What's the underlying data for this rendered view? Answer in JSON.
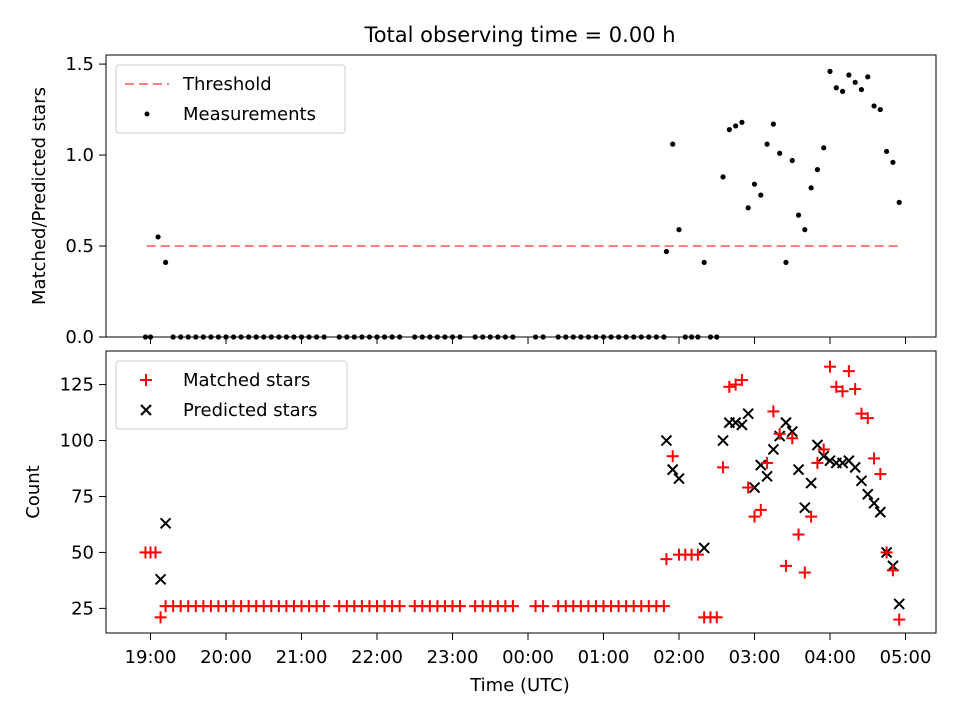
{
  "title": "Total observing time = 0.00 h",
  "colors": {
    "threshold": "#ff7f7f",
    "measurements": "#000000",
    "matched": "#ff0000",
    "predicted": "#000000"
  },
  "chart_data": [
    {
      "type": "scatter",
      "panel": "top",
      "ylabel": "Matched/Predicted stars",
      "xlabel": "",
      "ylim": [
        0,
        1.55
      ],
      "yticks": [
        0.0,
        0.5,
        1.0,
        1.5
      ],
      "ytick_labels": [
        "0.0",
        "0.5",
        "1.0",
        "1.5"
      ],
      "legend_position": "top-left",
      "threshold": {
        "name": "Threshold",
        "value": 0.5,
        "x_start": "18:57",
        "x_end": "04:57"
      },
      "series": [
        {
          "name": "Measurements",
          "points": [
            [
              "18:56",
              0
            ],
            [
              "19:00",
              0
            ],
            [
              "19:06",
              0.55
            ],
            [
              "19:12",
              0.41
            ],
            [
              "19:18",
              0
            ],
            [
              "19:24",
              0
            ],
            [
              "19:30",
              0
            ],
            [
              "19:36",
              0
            ],
            [
              "19:42",
              0
            ],
            [
              "19:48",
              0
            ],
            [
              "19:54",
              0
            ],
            [
              "20:00",
              0
            ],
            [
              "20:06",
              0
            ],
            [
              "20:12",
              0
            ],
            [
              "20:18",
              0
            ],
            [
              "20:24",
              0
            ],
            [
              "20:30",
              0
            ],
            [
              "20:36",
              0
            ],
            [
              "20:42",
              0
            ],
            [
              "20:48",
              0
            ],
            [
              "20:54",
              0
            ],
            [
              "21:00",
              0
            ],
            [
              "21:06",
              0
            ],
            [
              "21:12",
              0
            ],
            [
              "21:18",
              0
            ],
            [
              "21:30",
              0
            ],
            [
              "21:36",
              0
            ],
            [
              "21:42",
              0
            ],
            [
              "21:48",
              0
            ],
            [
              "21:54",
              0
            ],
            [
              "22:00",
              0
            ],
            [
              "22:06",
              0
            ],
            [
              "22:12",
              0
            ],
            [
              "22:18",
              0
            ],
            [
              "22:30",
              0
            ],
            [
              "22:36",
              0
            ],
            [
              "22:42",
              0
            ],
            [
              "22:48",
              0
            ],
            [
              "22:54",
              0
            ],
            [
              "23:00",
              0
            ],
            [
              "23:06",
              0
            ],
            [
              "23:18",
              0
            ],
            [
              "23:24",
              0
            ],
            [
              "23:30",
              0
            ],
            [
              "23:36",
              0
            ],
            [
              "23:42",
              0
            ],
            [
              "23:48",
              0
            ],
            [
              "00:06",
              0
            ],
            [
              "00:12",
              0
            ],
            [
              "00:24",
              0
            ],
            [
              "00:30",
              0
            ],
            [
              "00:36",
              0
            ],
            [
              "00:42",
              0
            ],
            [
              "00:48",
              0
            ],
            [
              "00:54",
              0
            ],
            [
              "01:00",
              0
            ],
            [
              "01:06",
              0
            ],
            [
              "01:12",
              0
            ],
            [
              "01:18",
              0
            ],
            [
              "01:24",
              0
            ],
            [
              "01:30",
              0
            ],
            [
              "01:36",
              0
            ],
            [
              "01:42",
              0
            ],
            [
              "01:48",
              0
            ],
            [
              "01:50",
              0.47
            ],
            [
              "01:55",
              1.06
            ],
            [
              "02:00",
              0.59
            ],
            [
              "02:05",
              0
            ],
            [
              "02:10",
              0
            ],
            [
              "02:15",
              0
            ],
            [
              "02:20",
              0.41
            ],
            [
              "02:25",
              0
            ],
            [
              "02:30",
              0
            ],
            [
              "02:35",
              0.88
            ],
            [
              "02:40",
              1.14
            ],
            [
              "02:45",
              1.16
            ],
            [
              "02:50",
              1.18
            ],
            [
              "02:55",
              0.71
            ],
            [
              "03:00",
              0.84
            ],
            [
              "03:05",
              0.78
            ],
            [
              "03:10",
              1.06
            ],
            [
              "03:15",
              1.17
            ],
            [
              "03:20",
              1.01
            ],
            [
              "03:25",
              0.41
            ],
            [
              "03:30",
              0.97
            ],
            [
              "03:35",
              0.67
            ],
            [
              "03:40",
              0.59
            ],
            [
              "03:45",
              0.82
            ],
            [
              "03:50",
              0.92
            ],
            [
              "03:55",
              1.04
            ],
            [
              "04:00",
              1.46
            ],
            [
              "04:05",
              1.37
            ],
            [
              "04:10",
              1.35
            ],
            [
              "04:15",
              1.44
            ],
            [
              "04:20",
              1.4
            ],
            [
              "04:25",
              1.36
            ],
            [
              "04:30",
              1.43
            ],
            [
              "04:35",
              1.27
            ],
            [
              "04:40",
              1.25
            ],
            [
              "04:45",
              1.02
            ],
            [
              "04:50",
              0.96
            ],
            [
              "04:55",
              0.74
            ]
          ]
        }
      ]
    },
    {
      "type": "scatter",
      "panel": "bottom",
      "xlabel": "Time (UTC)",
      "ylabel": "Count",
      "ylim": [
        14,
        140
      ],
      "yticks": [
        25,
        50,
        75,
        100,
        125
      ],
      "ytick_labels": [
        "25",
        "50",
        "75",
        "100",
        "125"
      ],
      "xticks": [
        "19:00",
        "20:00",
        "21:00",
        "22:00",
        "23:00",
        "00:00",
        "01:00",
        "02:00",
        "03:00",
        "04:00",
        "05:00"
      ],
      "xtick_labels": [
        "19:00",
        "20:00",
        "21:00",
        "22:00",
        "23:00",
        "00:00",
        "01:00",
        "02:00",
        "03:00",
        "04:00",
        "05:00"
      ],
      "legend_position": "top-left",
      "series": [
        {
          "name": "Matched stars",
          "points": [
            [
              "18:56",
              50
            ],
            [
              "19:00",
              50
            ],
            [
              "19:04",
              50
            ],
            [
              "19:08",
              21
            ],
            [
              "19:12",
              26
            ],
            [
              "19:18",
              26
            ],
            [
              "19:24",
              26
            ],
            [
              "19:30",
              26
            ],
            [
              "19:36",
              26
            ],
            [
              "19:42",
              26
            ],
            [
              "19:48",
              26
            ],
            [
              "19:54",
              26
            ],
            [
              "20:00",
              26
            ],
            [
              "20:06",
              26
            ],
            [
              "20:12",
              26
            ],
            [
              "20:18",
              26
            ],
            [
              "20:24",
              26
            ],
            [
              "20:30",
              26
            ],
            [
              "20:36",
              26
            ],
            [
              "20:42",
              26
            ],
            [
              "20:48",
              26
            ],
            [
              "20:54",
              26
            ],
            [
              "21:00",
              26
            ],
            [
              "21:06",
              26
            ],
            [
              "21:12",
              26
            ],
            [
              "21:18",
              26
            ],
            [
              "21:30",
              26
            ],
            [
              "21:36",
              26
            ],
            [
              "21:42",
              26
            ],
            [
              "21:48",
              26
            ],
            [
              "21:54",
              26
            ],
            [
              "22:00",
              26
            ],
            [
              "22:06",
              26
            ],
            [
              "22:12",
              26
            ],
            [
              "22:18",
              26
            ],
            [
              "22:30",
              26
            ],
            [
              "22:36",
              26
            ],
            [
              "22:42",
              26
            ],
            [
              "22:48",
              26
            ],
            [
              "22:54",
              26
            ],
            [
              "23:00",
              26
            ],
            [
              "23:06",
              26
            ],
            [
              "23:18",
              26
            ],
            [
              "23:24",
              26
            ],
            [
              "23:30",
              26
            ],
            [
              "23:36",
              26
            ],
            [
              "23:42",
              26
            ],
            [
              "23:48",
              26
            ],
            [
              "00:06",
              26
            ],
            [
              "00:12",
              26
            ],
            [
              "00:24",
              26
            ],
            [
              "00:30",
              26
            ],
            [
              "00:36",
              26
            ],
            [
              "00:42",
              26
            ],
            [
              "00:48",
              26
            ],
            [
              "00:54",
              26
            ],
            [
              "01:00",
              26
            ],
            [
              "01:06",
              26
            ],
            [
              "01:12",
              26
            ],
            [
              "01:18",
              26
            ],
            [
              "01:24",
              26
            ],
            [
              "01:30",
              26
            ],
            [
              "01:36",
              26
            ],
            [
              "01:42",
              26
            ],
            [
              "01:48",
              26
            ],
            [
              "01:50",
              47
            ],
            [
              "01:55",
              93
            ],
            [
              "02:00",
              49
            ],
            [
              "02:05",
              49
            ],
            [
              "02:10",
              49
            ],
            [
              "02:15",
              49
            ],
            [
              "02:20",
              21
            ],
            [
              "02:25",
              21
            ],
            [
              "02:30",
              21
            ],
            [
              "02:35",
              88
            ],
            [
              "02:40",
              124
            ],
            [
              "02:45",
              125
            ],
            [
              "02:50",
              127
            ],
            [
              "02:55",
              79
            ],
            [
              "03:00",
              66
            ],
            [
              "03:05",
              69
            ],
            [
              "03:10",
              90
            ],
            [
              "03:15",
              113
            ],
            [
              "03:20",
              103
            ],
            [
              "03:25",
              44
            ],
            [
              "03:30",
              101
            ],
            [
              "03:35",
              58
            ],
            [
              "03:40",
              41
            ],
            [
              "03:45",
              66
            ],
            [
              "03:50",
              90
            ],
            [
              "03:55",
              96
            ],
            [
              "04:00",
              133
            ],
            [
              "04:05",
              124
            ],
            [
              "04:10",
              122
            ],
            [
              "04:15",
              131
            ],
            [
              "04:20",
              123
            ],
            [
              "04:25",
              112
            ],
            [
              "04:30",
              110
            ],
            [
              "04:35",
              92
            ],
            [
              "04:40",
              85
            ],
            [
              "04:45",
              50
            ],
            [
              "04:50",
              42
            ],
            [
              "04:55",
              20
            ]
          ]
        },
        {
          "name": "Predicted stars",
          "points": [
            [
              "19:08",
              38
            ],
            [
              "19:12",
              63
            ],
            [
              "01:50",
              100
            ],
            [
              "01:55",
              87
            ],
            [
              "02:00",
              83
            ],
            [
              "02:20",
              52
            ],
            [
              "02:35",
              100
            ],
            [
              "02:40",
              108
            ],
            [
              "02:45",
              108
            ],
            [
              "02:50",
              107
            ],
            [
              "02:55",
              112
            ],
            [
              "03:00",
              79
            ],
            [
              "03:05",
              89
            ],
            [
              "03:10",
              84
            ],
            [
              "03:15",
              96
            ],
            [
              "03:20",
              102
            ],
            [
              "03:25",
              108
            ],
            [
              "03:30",
              104
            ],
            [
              "03:35",
              87
            ],
            [
              "03:40",
              70
            ],
            [
              "03:45",
              81
            ],
            [
              "03:50",
              98
            ],
            [
              "03:55",
              93
            ],
            [
              "04:00",
              91
            ],
            [
              "04:05",
              90
            ],
            [
              "04:10",
              90
            ],
            [
              "04:15",
              91
            ],
            [
              "04:20",
              88
            ],
            [
              "04:25",
              82
            ],
            [
              "04:30",
              76
            ],
            [
              "04:35",
              72
            ],
            [
              "04:40",
              68
            ],
            [
              "04:45",
              50
            ],
            [
              "04:50",
              44
            ],
            [
              "04:55",
              27
            ]
          ]
        }
      ]
    }
  ]
}
